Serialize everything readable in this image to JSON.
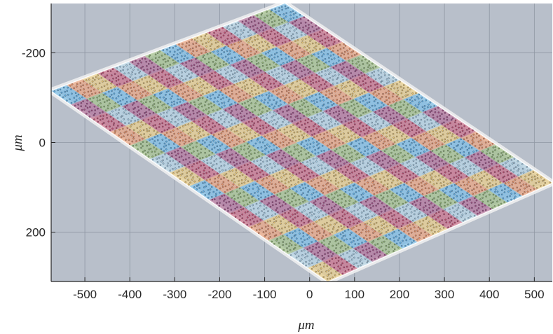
{
  "chart_data": {
    "type": "scatter",
    "title": "",
    "xlabel": "μm",
    "ylabel": "μm",
    "xlim": [
      -575,
      540
    ],
    "ylim": [
      310,
      -310
    ],
    "y_axis_direction": "reversed",
    "grid": true,
    "background_color": "#b8bfca",
    "x_ticks": [
      -500,
      -400,
      -300,
      -200,
      -100,
      0,
      100,
      200,
      300,
      400,
      500
    ],
    "y_ticks": [
      -200,
      0,
      200
    ],
    "x_tick_labels": [
      "-500",
      "-400",
      "-300",
      "-200",
      "-100",
      "0",
      "100",
      "200",
      "300",
      "400",
      "500"
    ],
    "y_tick_labels": [
      "-200",
      "0",
      "200"
    ],
    "region": {
      "shape": "parallelogram",
      "corners": [
        [
          -575,
          -115
        ],
        [
          -55,
          -310
        ],
        [
          540,
          90
        ],
        [
          40,
          310
        ]
      ],
      "outline_color": "#f2f2f2"
    },
    "patches": {
      "grid_rows": 14,
      "grid_cols": 15,
      "colors": [
        "#5aaee3",
        "#a2cbe0",
        "#e98d5d",
        "#a14a80",
        "#e8c36a",
        "#8eb56e",
        "#c0476a"
      ]
    }
  }
}
